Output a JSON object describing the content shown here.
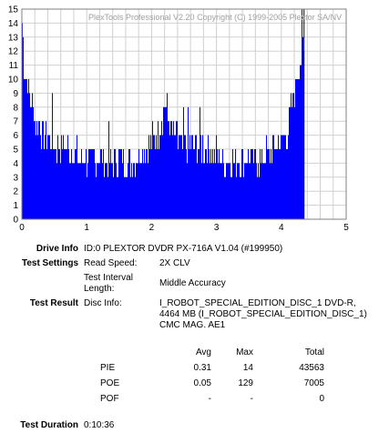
{
  "chart_data": {
    "type": "bar",
    "watermark": "PlexTools Professional V2.20 Copyright (C) 1999-2005 Plextor SA/NV",
    "xlim": [
      0,
      5
    ],
    "ylim": [
      0,
      15
    ],
    "x_ticks": [
      "0",
      "1",
      "2",
      "3",
      "4",
      "5"
    ],
    "y_ticks": [
      "0",
      "1",
      "2",
      "3",
      "4",
      "5",
      "6",
      "7",
      "8",
      "9",
      "10",
      "11",
      "12",
      "13",
      "14",
      "15"
    ],
    "grid": true,
    "bar_color": "#0000ff",
    "marker_line_x": 4.35,
    "series": [
      {
        "x_range": [
          0,
          4.35
        ],
        "profile": [
          [
            0.0,
            14
          ],
          [
            0.03,
            11
          ],
          [
            0.06,
            10
          ],
          [
            0.1,
            9
          ],
          [
            0.15,
            8
          ],
          [
            0.2,
            7
          ],
          [
            0.3,
            6
          ],
          [
            0.5,
            5
          ],
          [
            0.7,
            5
          ],
          [
            0.9,
            4
          ],
          [
            1.1,
            4
          ],
          [
            1.3,
            4
          ],
          [
            1.5,
            4
          ],
          [
            1.7,
            4
          ],
          [
            1.9,
            5
          ],
          [
            2.1,
            6
          ],
          [
            2.2,
            8
          ],
          [
            2.3,
            6
          ],
          [
            2.5,
            5
          ],
          [
            2.7,
            5
          ],
          [
            2.9,
            5
          ],
          [
            3.1,
            4
          ],
          [
            3.3,
            4
          ],
          [
            3.5,
            4
          ],
          [
            3.7,
            4
          ],
          [
            3.9,
            5
          ],
          [
            4.1,
            6
          ],
          [
            4.2,
            9
          ],
          [
            4.28,
            11
          ],
          [
            4.35,
            12
          ]
        ]
      }
    ]
  },
  "info": {
    "drive_info_label": "Drive Info",
    "drive_info_value": "ID:0 PLEXTOR DVDR PX-716A V1.04 (#199950)",
    "test_settings_label": "Test Settings",
    "read_speed_key": "Read Speed:",
    "read_speed_value": "2X CLV",
    "interval_key_1": "Test Interval",
    "interval_key_2": "Length:",
    "interval_value": "Middle Accuracy",
    "test_result_label": "Test Result",
    "disc_info_key": "Disc Info:",
    "disc_info_line1": "I_ROBOT_SPECIAL_EDITION_DISC_1 DVD-R,",
    "disc_info_line2": "4464 MB (I_ROBOT_SPECIAL_EDITION_DISC_1)",
    "disc_info_line3": "CMC MAG. AE1",
    "duration_label": "Test Duration",
    "duration_value": "0:10:36"
  },
  "stats": {
    "headers": [
      "Avg",
      "Max",
      "Total"
    ],
    "rows": [
      {
        "name": "PIE",
        "avg": "0.31",
        "max": "14",
        "total": "43563"
      },
      {
        "name": "POE",
        "avg": "0.05",
        "max": "129",
        "total": "7005"
      },
      {
        "name": "POF",
        "avg": "-",
        "max": "-",
        "total": "0"
      }
    ]
  }
}
